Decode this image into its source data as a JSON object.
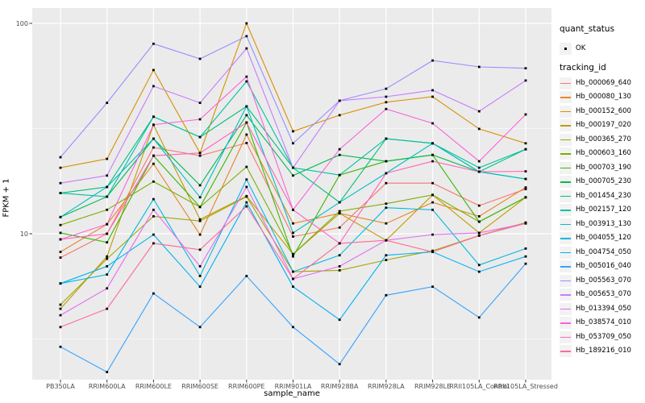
{
  "chart_data": {
    "type": "line",
    "title": "",
    "xlabel": "sample_name",
    "ylabel": "FPKM + 1",
    "y_scale": "log10",
    "y_ticks": [
      10,
      100
    ],
    "y_minor_gridlines": [
      3.1623,
      31.623
    ],
    "ylim": [
      2.0,
      118
    ],
    "grid": "on",
    "legend_position": "right",
    "panel_bg": "#EBEBEB",
    "grid_color": "#FFFFFF",
    "point_marker": {
      "shape": "filled-square",
      "color": "#000000",
      "meaning": "quant_status OK"
    },
    "x_categories": [
      "PB350LA",
      "RRIM600LA",
      "RRIM600LE",
      "RRIM600SE",
      "RRIM600PE",
      "RRIM901LA",
      "RRIM928BA",
      "RRIM928LA",
      "RRIM928LE",
      "RRII105LA_Control",
      "RRII105LA_Stressed"
    ],
    "series": [
      {
        "name": "Hb_000069_640",
        "color": "#F8766D",
        "values": [
          7.7,
          10.0,
          25.7,
          23.5,
          27.0,
          9.7,
          10.7,
          17.4,
          17.4,
          13.6,
          16.3
        ]
      },
      {
        "name": "Hb_000080_130",
        "color": "#E88526",
        "values": [
          8.2,
          11.1,
          21.5,
          9.9,
          29.6,
          11.2,
          12.5,
          11.2,
          14.1,
          12.1,
          16.6
        ]
      },
      {
        "name": "Hb_000152_600",
        "color": "#D89000",
        "values": [
          20.6,
          22.7,
          60.0,
          24.2,
          100.0,
          30.7,
          36.6,
          42.2,
          44.8,
          31.5,
          26.9
        ]
      },
      {
        "name": "Hb_000197_020",
        "color": "#C09B00",
        "values": [
          4.4,
          7.8,
          32.9,
          11.7,
          15.1,
          8.0,
          12.5,
          9.3,
          15.3,
          10.1,
          14.9
        ]
      },
      {
        "name": "Hb_000365_270",
        "color": "#A3A500",
        "values": [
          4.6,
          7.6,
          12.1,
          11.5,
          15.0,
          6.6,
          6.7,
          7.5,
          8.3,
          9.8,
          11.3
        ]
      },
      {
        "name": "Hb_000603_160",
        "color": "#7CAE00",
        "values": [
          11.0,
          13.0,
          17.7,
          13.4,
          20.8,
          8.0,
          12.8,
          13.9,
          15.3,
          11.4,
          14.9
        ]
      },
      {
        "name": "Hb_000703_190",
        "color": "#39B600",
        "values": [
          10.1,
          9.1,
          23.5,
          13.4,
          33.8,
          7.8,
          19.0,
          22.1,
          23.7,
          11.4,
          14.9
        ]
      },
      {
        "name": "Hb_000705_230",
        "color": "#00BB4E",
        "values": [
          12.0,
          15.0,
          28.3,
          17.0,
          36.6,
          18.9,
          23.7,
          22.1,
          23.7,
          19.7,
          18.2
        ]
      },
      {
        "name": "Hb_001454_230",
        "color": "#00BF7D",
        "values": [
          15.6,
          16.7,
          36.0,
          28.8,
          40.3,
          20.6,
          14.1,
          28.3,
          26.9,
          19.7,
          25.2
        ]
      },
      {
        "name": "Hb_002157_120",
        "color": "#00C1A3",
        "values": [
          15.6,
          15.0,
          36.0,
          28.8,
          53.0,
          20.6,
          19.0,
          28.3,
          26.9,
          20.6,
          25.2
        ]
      },
      {
        "name": "Hb_003913_130",
        "color": "#00BFC4",
        "values": [
          12.0,
          16.7,
          28.3,
          14.9,
          40.3,
          10.1,
          14.1,
          19.4,
          26.9,
          19.7,
          18.2
        ]
      },
      {
        "name": "Hb_004055_120",
        "color": "#00BAE0",
        "values": [
          5.8,
          6.4,
          14.6,
          6.3,
          18.1,
          6.6,
          7.9,
          13.3,
          13.0,
          7.1,
          8.5
        ]
      },
      {
        "name": "Hb_004754_050",
        "color": "#00B0F6",
        "values": [
          5.8,
          7.0,
          9.9,
          5.6,
          14.1,
          5.6,
          3.9,
          7.9,
          8.2,
          6.6,
          7.8
        ]
      },
      {
        "name": "Hb_005016_040",
        "color": "#35A2FF",
        "values": [
          2.9,
          2.2,
          5.2,
          3.6,
          6.3,
          3.6,
          2.4,
          5.1,
          5.6,
          4.0,
          7.2
        ]
      },
      {
        "name": "Hb_005563_070",
        "color": "#9590FF",
        "values": [
          23.1,
          41.9,
          80.0,
          67.8,
          86.9,
          26.9,
          42.9,
          48.9,
          66.6,
          62.1,
          61.2
        ]
      },
      {
        "name": "Hb_005653_070",
        "color": "#C77CFF",
        "values": [
          17.4,
          18.9,
          50.3,
          41.9,
          76.0,
          20.6,
          42.9,
          44.8,
          48.1,
          38.2,
          53.5
        ]
      },
      {
        "name": "Hb_013394_050",
        "color": "#E76BF3",
        "values": [
          4.1,
          5.5,
          13.0,
          7.0,
          16.7,
          6.1,
          7.0,
          9.3,
          9.9,
          10.1,
          11.2
        ]
      },
      {
        "name": "Hb_038574_010",
        "color": "#FA62DB",
        "values": [
          9.4,
          11.1,
          33.0,
          35.0,
          55.8,
          13.0,
          25.2,
          39.2,
          33.5,
          22.1,
          36.9
        ]
      },
      {
        "name": "Hb_053709_050",
        "color": "#FF62BC",
        "values": [
          9.4,
          10.0,
          23.5,
          24.2,
          33.8,
          13.0,
          9.0,
          19.4,
          22.1,
          19.7,
          19.8
        ]
      },
      {
        "name": "Hb_189216_010",
        "color": "#FF6A98",
        "values": [
          3.6,
          4.4,
          9.0,
          8.4,
          13.5,
          6.1,
          9.0,
          9.3,
          8.2,
          9.8,
          11.2
        ]
      }
    ]
  },
  "legend": {
    "quant_status": {
      "title": "quant_status",
      "items": [
        {
          "label": "OK",
          "marker_color": "#000000"
        }
      ]
    },
    "tracking": {
      "title": "tracking_id"
    }
  }
}
